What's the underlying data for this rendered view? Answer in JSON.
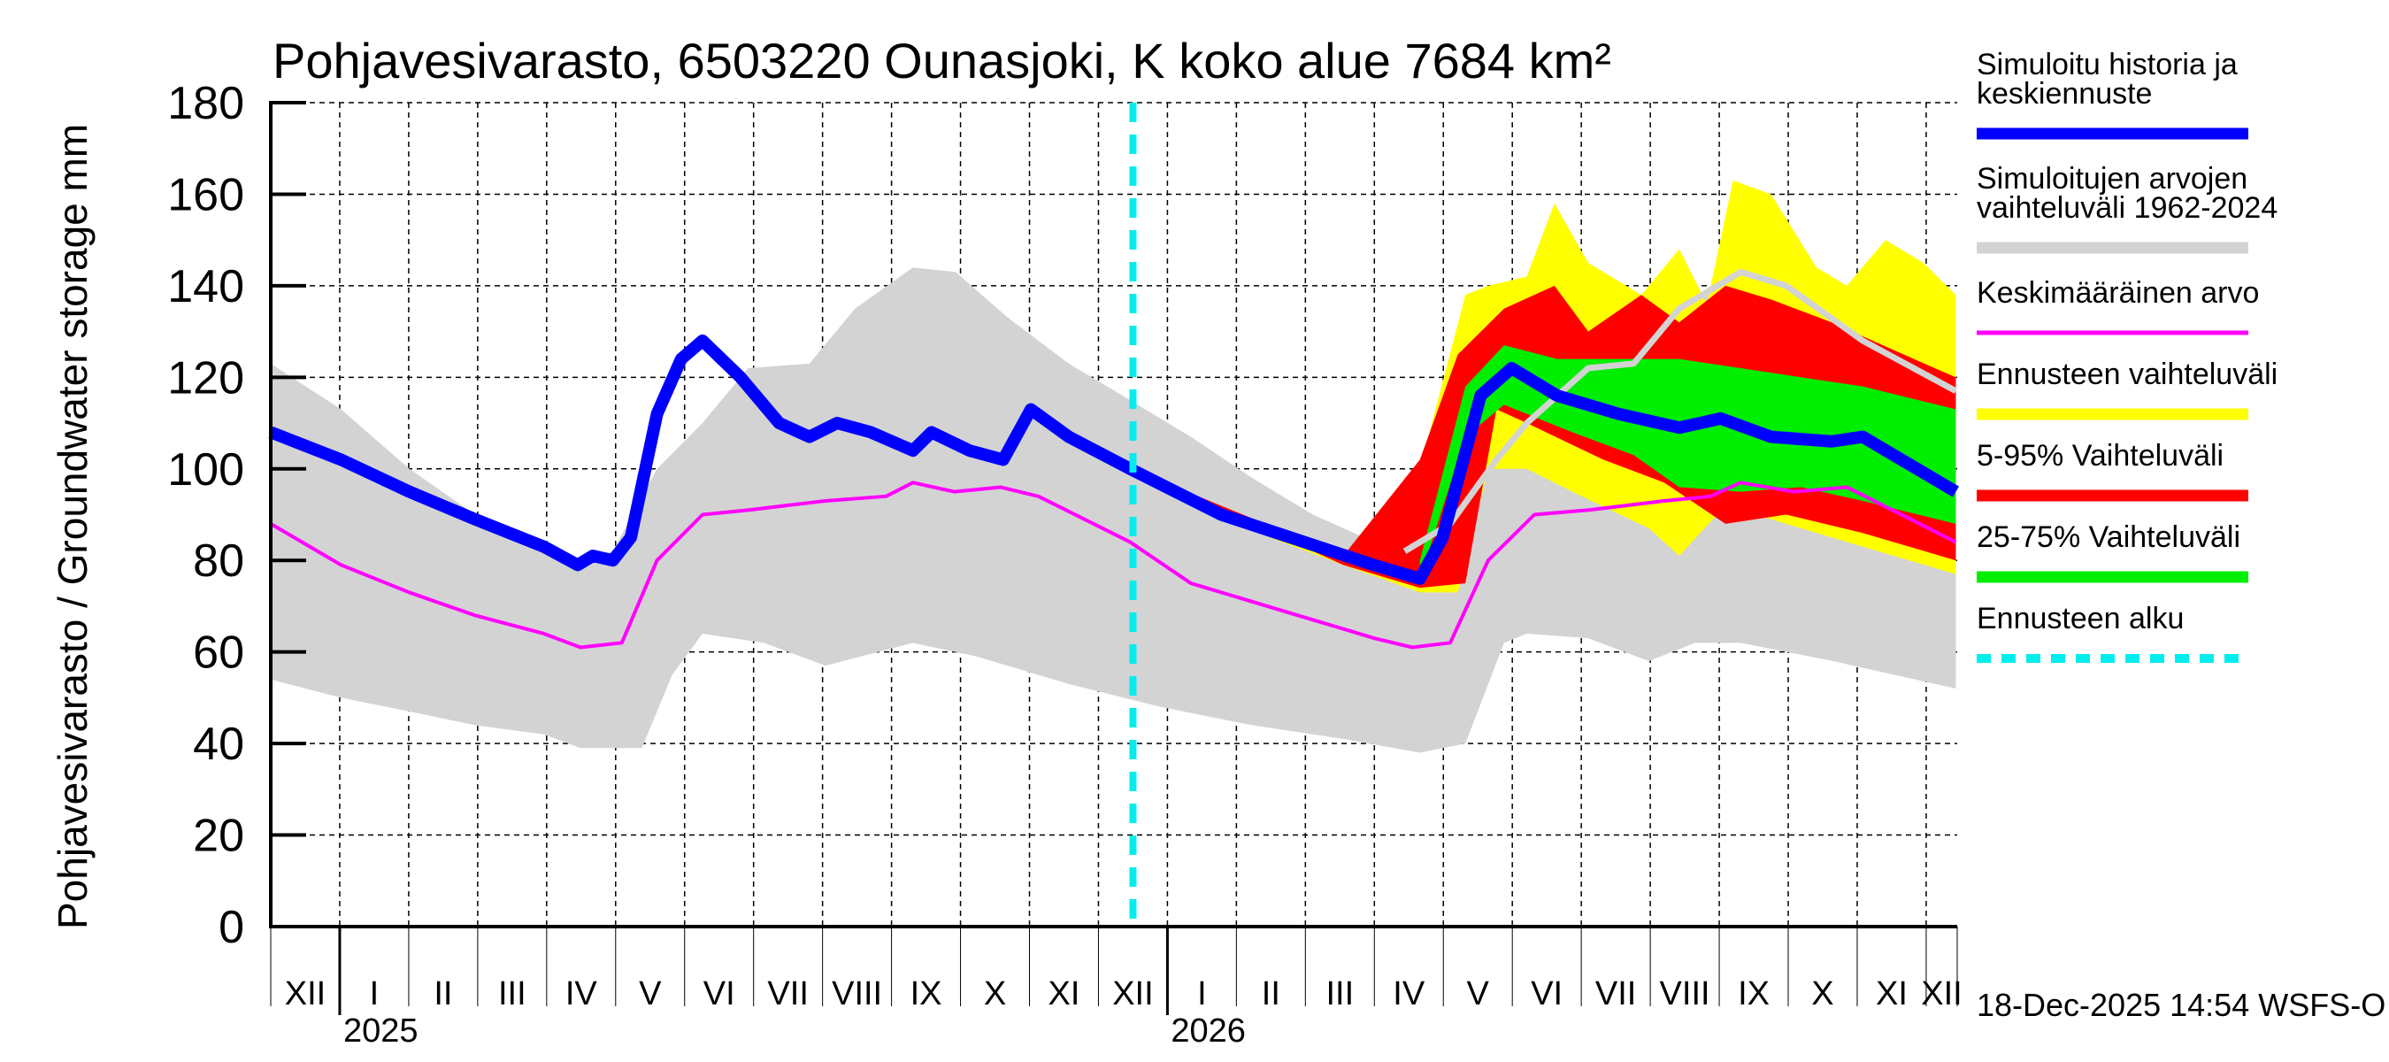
{
  "chart_data": {
    "type": "area",
    "title": "Pohjavesivarasto, 6503220 Ounasjoki, K koko alue 7684 km²",
    "ylabel": "Pohjavesivarasto / Groundwater storage   mm",
    "xlabel": "",
    "ylim": [
      0,
      180
    ],
    "yticks": [
      0,
      20,
      40,
      60,
      80,
      100,
      120,
      140,
      160,
      180
    ],
    "x_unit": "months since 2024-12-01",
    "xlim": [
      0,
      24.45
    ],
    "grid": true,
    "forecast_start": 12.5,
    "month_labels": [
      "XII",
      "I",
      "II",
      "III",
      "IV",
      "V",
      "VI",
      "VII",
      "VIII",
      "IX",
      "X",
      "XI",
      "XII",
      "I",
      "II",
      "III",
      "IV",
      "V",
      "VI",
      "VII",
      "VIII",
      "IX",
      "X",
      "XI",
      "XII"
    ],
    "year_labels": [
      {
        "label": "2025",
        "month_index": 1
      },
      {
        "label": "2026",
        "month_index": 13
      }
    ],
    "timestamp": "18-Dec-2025 14:54 WSFS-O",
    "legend_position": "right",
    "legend": [
      {
        "label_lines": [
          "Simuloitu historia ja",
          "keskiennuste"
        ],
        "color": "#0000ff",
        "style": "thick"
      },
      {
        "label_lines": [
          "Simuloitujen arvojen",
          "vaihteluväli 1962-2024"
        ],
        "color": "#d3d3d3",
        "style": "thick"
      },
      {
        "label_lines": [
          "Keskimääräinen arvo"
        ],
        "color": "#ff00ff",
        "style": "thin"
      },
      {
        "label_lines": [
          "Ennusteen vaihteluväli"
        ],
        "color": "#ffff00",
        "style": "thick"
      },
      {
        "label_lines": [
          "5-95% Vaihteluväli"
        ],
        "color": "#ff0000",
        "style": "thick"
      },
      {
        "label_lines": [
          "25-75% Vaihteluväli"
        ],
        "color": "#00ee00",
        "style": "thick"
      },
      {
        "label_lines": [
          "Ennusteen alku"
        ],
        "color": "#00eeee",
        "style": "dashed"
      }
    ],
    "series": [
      {
        "name": "Simuloitujen arvojen vaihteluväli 1962-2024 (upper)",
        "color": "#d3d3d3",
        "points": [
          [
            0,
            123
          ],
          [
            1.02,
            113
          ],
          [
            2.01,
            100
          ],
          [
            2.96,
            90
          ],
          [
            3.96,
            84
          ],
          [
            4.49,
            80
          ],
          [
            4.96,
            82
          ],
          [
            5.6,
            100
          ],
          [
            6.26,
            110
          ],
          [
            6.92,
            122
          ],
          [
            7.81,
            123
          ],
          [
            8.47,
            135
          ],
          [
            9.31,
            144
          ],
          [
            9.93,
            143
          ],
          [
            10.69,
            133
          ],
          [
            11.57,
            123
          ],
          [
            12.46,
            115
          ],
          [
            13.34,
            107
          ],
          [
            14.23,
            98
          ],
          [
            15.11,
            90
          ],
          [
            16.0,
            84
          ],
          [
            16.44,
            82
          ],
          [
            17.1,
            88
          ],
          [
            17.77,
            102
          ],
          [
            18.21,
            110
          ],
          [
            19.1,
            122
          ],
          [
            19.76,
            123
          ],
          [
            20.42,
            135
          ],
          [
            21.31,
            143
          ],
          [
            21.97,
            140
          ],
          [
            23.08,
            128
          ],
          [
            24.43,
            117
          ]
        ]
      },
      {
        "name": "Simuloitujen arvojen vaihteluväli 1962-2024 (lower)",
        "color": "#d3d3d3",
        "points": [
          [
            0,
            54
          ],
          [
            1.02,
            50
          ],
          [
            2.01,
            47
          ],
          [
            2.96,
            44
          ],
          [
            3.96,
            42
          ],
          [
            4.49,
            39
          ],
          [
            5.38,
            39
          ],
          [
            5.82,
            55
          ],
          [
            6.26,
            64
          ],
          [
            7.15,
            62
          ],
          [
            8.04,
            57
          ],
          [
            8.81,
            60
          ],
          [
            9.31,
            62
          ],
          [
            10.24,
            59
          ],
          [
            11.57,
            53
          ],
          [
            12.9,
            48
          ],
          [
            14.23,
            44
          ],
          [
            15.55,
            41
          ],
          [
            16.66,
            38
          ],
          [
            17.32,
            40
          ],
          [
            17.88,
            62
          ],
          [
            18.21,
            64
          ],
          [
            19.1,
            63
          ],
          [
            19.98,
            58
          ],
          [
            20.65,
            62
          ],
          [
            21.31,
            62
          ],
          [
            22.65,
            58
          ],
          [
            24.43,
            52
          ]
        ]
      },
      {
        "name": "Ennusteen vaihteluväli (upper)",
        "color": "#ffff00",
        "points": [
          [
            12.48,
            100
          ],
          [
            13.78,
            91
          ],
          [
            15.55,
            82
          ],
          [
            16.17,
            85
          ],
          [
            16.66,
            100
          ],
          [
            17.32,
            138
          ],
          [
            17.65,
            140
          ],
          [
            18.21,
            142
          ],
          [
            18.61,
            158
          ],
          [
            19.1,
            145
          ],
          [
            19.87,
            138
          ],
          [
            20.42,
            148
          ],
          [
            20.82,
            136
          ],
          [
            21.2,
            163
          ],
          [
            21.75,
            160
          ],
          [
            22.41,
            144
          ],
          [
            22.85,
            140
          ],
          [
            23.41,
            150
          ],
          [
            23.96,
            145
          ],
          [
            24.43,
            138
          ]
        ]
      },
      {
        "name": "Ennusteen vaihteluväli (lower)",
        "color": "#ffff00",
        "points": [
          [
            12.48,
            100
          ],
          [
            13.78,
            89
          ],
          [
            15.55,
            79
          ],
          [
            16.66,
            73
          ],
          [
            17.21,
            73
          ],
          [
            17.65,
            100
          ],
          [
            18.21,
            100
          ],
          [
            18.87,
            95
          ],
          [
            19.98,
            87
          ],
          [
            20.42,
            81
          ],
          [
            21.09,
            92
          ],
          [
            21.97,
            88
          ],
          [
            23.08,
            83
          ],
          [
            24.43,
            77
          ]
        ]
      },
      {
        "name": "5-95% Vaihteluväli (upper)",
        "color": "#ff0000",
        "points": [
          [
            12.48,
            100
          ],
          [
            15.55,
            81
          ],
          [
            16.66,
            102
          ],
          [
            17.21,
            125
          ],
          [
            17.88,
            135
          ],
          [
            18.61,
            140
          ],
          [
            19.1,
            130
          ],
          [
            19.87,
            138
          ],
          [
            20.42,
            132
          ],
          [
            21.09,
            140
          ],
          [
            21.75,
            137
          ],
          [
            22.63,
            132
          ],
          [
            23.52,
            126
          ],
          [
            24.43,
            120
          ]
        ]
      },
      {
        "name": "5-95% Vaihteluväli (lower)",
        "color": "#ff0000",
        "points": [
          [
            12.48,
            100
          ],
          [
            15.55,
            79
          ],
          [
            16.66,
            74
          ],
          [
            17.32,
            75
          ],
          [
            17.77,
            113
          ],
          [
            18.21,
            110
          ],
          [
            19.32,
            102
          ],
          [
            20.2,
            97
          ],
          [
            21.09,
            88
          ],
          [
            21.97,
            90
          ],
          [
            23.08,
            86
          ],
          [
            24.43,
            80
          ]
        ]
      },
      {
        "name": "25-75% Vaihteluväli (upper)",
        "color": "#00ee00",
        "points": [
          [
            16.66,
            80
          ],
          [
            17.32,
            118
          ],
          [
            17.88,
            127
          ],
          [
            18.65,
            124
          ],
          [
            19.54,
            124
          ],
          [
            20.42,
            124
          ],
          [
            21.31,
            122
          ],
          [
            22.19,
            120
          ],
          [
            23.08,
            118
          ],
          [
            24.43,
            113
          ]
        ]
      },
      {
        "name": "25-75% Vaihteluväli (lower)",
        "color": "#00ee00",
        "points": [
          [
            16.66,
            76
          ],
          [
            17.32,
            107
          ],
          [
            17.88,
            114
          ],
          [
            18.87,
            108
          ],
          [
            19.76,
            103
          ],
          [
            20.42,
            96
          ],
          [
            21.31,
            95
          ],
          [
            22.19,
            96
          ],
          [
            23.08,
            93
          ],
          [
            24.43,
            88
          ]
        ]
      },
      {
        "name": "Keskimääräinen arvo",
        "color": "#ff00ff",
        "points": [
          [
            0,
            88
          ],
          [
            1.02,
            79
          ],
          [
            2.01,
            73
          ],
          [
            2.96,
            68
          ],
          [
            3.96,
            64
          ],
          [
            4.49,
            61
          ],
          [
            5.09,
            62
          ],
          [
            5.6,
            80
          ],
          [
            6.26,
            90
          ],
          [
            6.92,
            91
          ],
          [
            8.04,
            93
          ],
          [
            8.92,
            94
          ],
          [
            9.31,
            97
          ],
          [
            9.91,
            95
          ],
          [
            10.58,
            96
          ],
          [
            11.13,
            94
          ],
          [
            12.46,
            84
          ],
          [
            13.34,
            75
          ],
          [
            14.89,
            68
          ],
          [
            16.0,
            63
          ],
          [
            16.55,
            61
          ],
          [
            17.1,
            62
          ],
          [
            17.65,
            80
          ],
          [
            18.32,
            90
          ],
          [
            19.1,
            91
          ],
          [
            20.2,
            93
          ],
          [
            20.87,
            94
          ],
          [
            21.31,
            97
          ],
          [
            22.08,
            95
          ],
          [
            22.85,
            96
          ],
          [
            24.43,
            84
          ]
        ]
      },
      {
        "name": "Simuloitu historia ja keskiennuste",
        "color": "#0000ff",
        "points": [
          [
            0,
            108
          ],
          [
            1.02,
            102
          ],
          [
            2.01,
            95
          ],
          [
            2.96,
            89
          ],
          [
            3.96,
            83
          ],
          [
            4.45,
            79
          ],
          [
            4.67,
            81
          ],
          [
            4.96,
            80
          ],
          [
            5.22,
            85
          ],
          [
            5.6,
            112
          ],
          [
            5.95,
            124
          ],
          [
            6.26,
            128
          ],
          [
            6.81,
            120
          ],
          [
            7.37,
            110
          ],
          [
            7.81,
            107
          ],
          [
            8.21,
            110
          ],
          [
            8.7,
            108
          ],
          [
            9.31,
            104
          ],
          [
            9.58,
            108
          ],
          [
            10.13,
            104
          ],
          [
            10.62,
            102
          ],
          [
            11.02,
            113
          ],
          [
            11.57,
            107
          ],
          [
            12.46,
            100
          ],
          [
            13.78,
            90
          ],
          [
            15.99,
            79
          ],
          [
            16.66,
            76
          ],
          [
            16.99,
            85
          ],
          [
            17.54,
            116
          ],
          [
            17.99,
            122
          ],
          [
            18.65,
            116
          ],
          [
            19.54,
            112
          ],
          [
            20.42,
            109
          ],
          [
            21.02,
            111
          ],
          [
            21.75,
            107
          ],
          [
            22.63,
            106
          ],
          [
            23.08,
            107
          ],
          [
            24.43,
            95
          ]
        ]
      }
    ]
  }
}
